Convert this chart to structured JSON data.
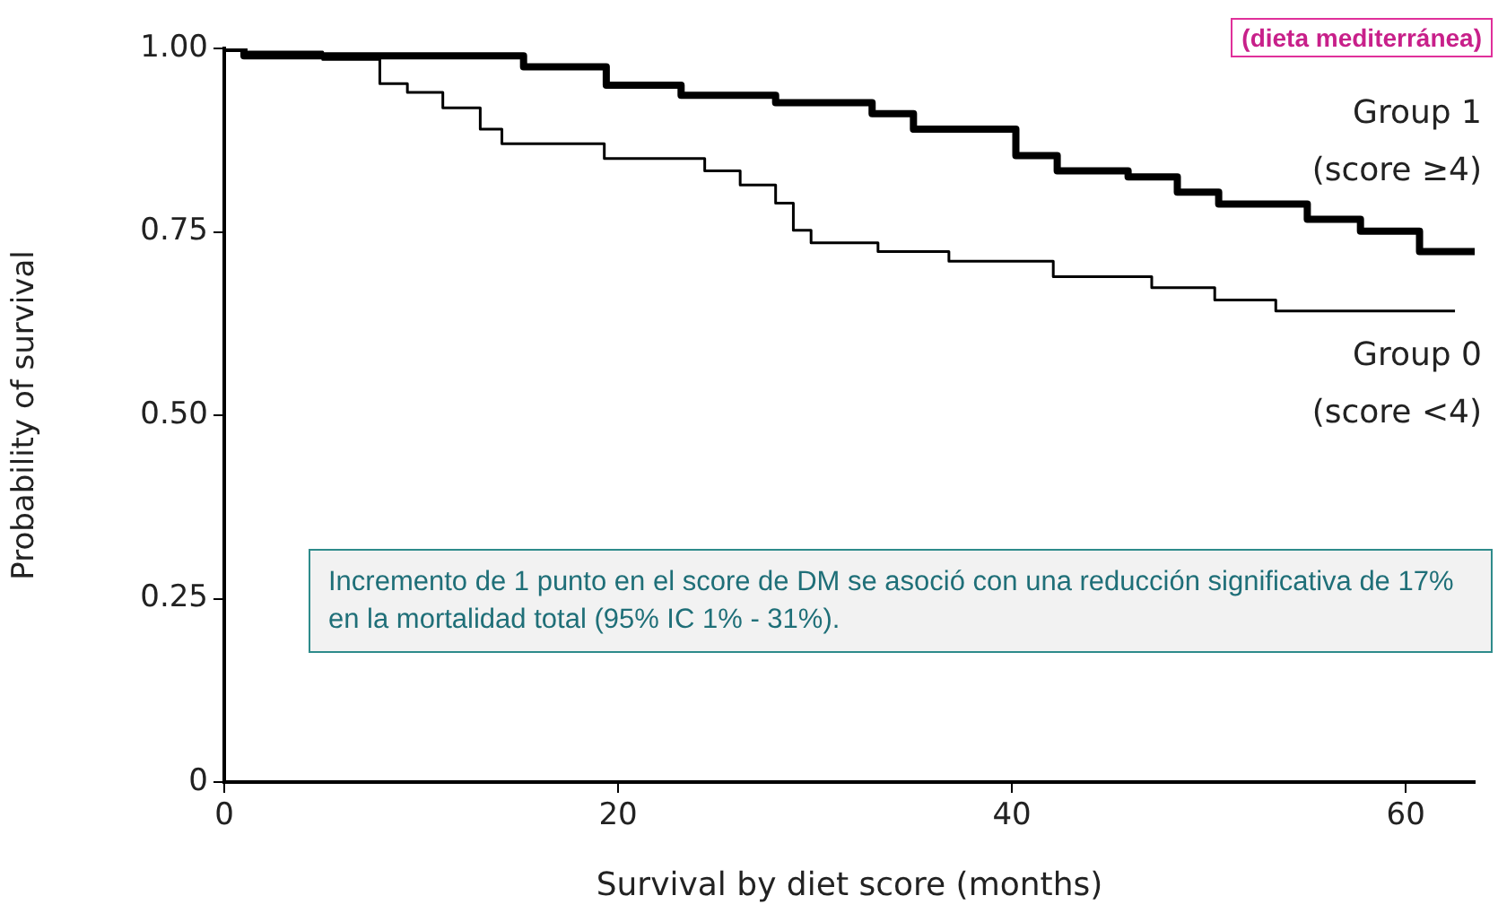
{
  "chart_data": {
    "type": "step",
    "xlabel": "Survival by diet score (months)",
    "ylabel": "Probability of survival",
    "xlim": [
      0,
      63.5
    ],
    "ylim": [
      0,
      1
    ],
    "xticks": [
      0,
      20,
      40,
      60
    ],
    "yticks": [
      {
        "value": 0,
        "label": "0"
      },
      {
        "value": 0.25,
        "label": "0.25"
      },
      {
        "value": 0.5,
        "label": "0.50"
      },
      {
        "value": 0.75,
        "label": "0.75"
      },
      {
        "value": 1,
        "label": "1.00"
      }
    ],
    "grid": false,
    "marker": "none",
    "series": [
      {
        "name": "Group 1 (score ≥4)",
        "color": "#000000",
        "x": [
          0,
          1,
          15.2,
          19.4,
          23.2,
          28,
          32.9,
          35,
          40.2,
          42.3,
          45.9,
          48.4,
          50.5,
          55,
          57.7,
          60.7,
          63.5
        ],
        "values": [
          1,
          0.99,
          0.975,
          0.95,
          0.936,
          0.926,
          0.911,
          0.89,
          0.854,
          0.833,
          0.825,
          0.804,
          0.788,
          0.767,
          0.751,
          0.723,
          0.723
        ]
      },
      {
        "name": "Group 0 (score <4)",
        "color": "#000000",
        "x": [
          0,
          1,
          5,
          7.9,
          9.3,
          11.1,
          13,
          14.1,
          19.3,
          24.4,
          26.2,
          28,
          28.9,
          29.8,
          33.2,
          36.8,
          42.1,
          47.1,
          50.3,
          53.4,
          62.5
        ],
        "values": [
          1,
          0.995,
          0.985,
          0.952,
          0.94,
          0.919,
          0.89,
          0.87,
          0.85,
          0.833,
          0.814,
          0.789,
          0.752,
          0.735,
          0.723,
          0.71,
          0.689,
          0.674,
          0.657,
          0.642,
          0.642
        ]
      }
    ],
    "annotations": [
      "(dieta mediterránea)",
      "Incremento de 1 punto en el score de DM se asoció con una reducción significativa de 17% en la mortalidad total (95% IC 1% - 31%)."
    ]
  }
}
